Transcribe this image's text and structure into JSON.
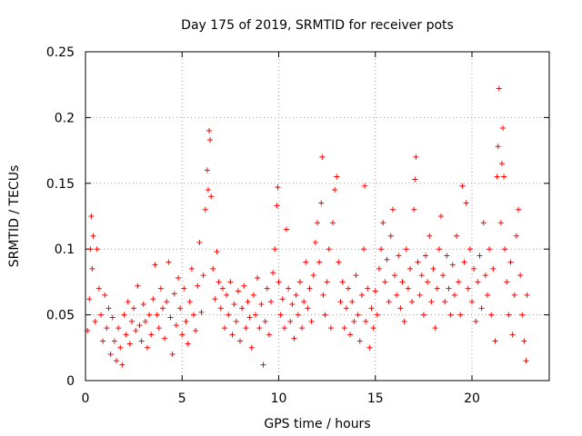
{
  "chart_data": {
    "type": "scatter",
    "title": "Day 175 of 2019, SRMTID for receiver pots",
    "xlabel": "GPS time / hours",
    "ylabel": "SRMTID / TECUs",
    "xlim": [
      0,
      24
    ],
    "ylim": [
      0,
      0.25
    ],
    "xticks": [
      0,
      5,
      10,
      15,
      20
    ],
    "xtick_labels": [
      "0",
      "5",
      "10",
      "15",
      "20"
    ],
    "yticks": [
      0,
      0.05,
      0.1,
      0.15,
      0.2,
      0.25
    ],
    "ytick_labels": [
      "0",
      "0.05",
      "0.1",
      "0.15",
      "0.2",
      "0.25"
    ],
    "grid": true,
    "marker": "plus",
    "color": "#ff0000",
    "series": [
      {
        "name": "SRMTID",
        "points": [
          [
            0.1,
            0.038
          ],
          [
            0.2,
            0.062
          ],
          [
            0.25,
            0.1
          ],
          [
            0.3,
            0.125
          ],
          [
            0.35,
            0.085
          ],
          [
            0.4,
            0.11
          ],
          [
            0.5,
            0.045
          ],
          [
            0.6,
            0.1
          ],
          [
            0.7,
            0.07
          ],
          [
            0.8,
            0.05
          ],
          [
            0.9,
            0.03
          ],
          [
            1.0,
            0.065
          ],
          [
            1.1,
            0.04
          ],
          [
            1.2,
            0.055
          ],
          [
            1.3,
            0.02
          ],
          [
            1.4,
            0.048
          ],
          [
            1.5,
            0.03
          ],
          [
            1.6,
            0.015
          ],
          [
            1.7,
            0.04
          ],
          [
            1.8,
            0.025
          ],
          [
            1.9,
            0.012
          ],
          [
            2.0,
            0.05
          ],
          [
            2.1,
            0.035
          ],
          [
            2.2,
            0.06
          ],
          [
            2.3,
            0.028
          ],
          [
            2.4,
            0.045
          ],
          [
            2.5,
            0.055
          ],
          [
            2.6,
            0.038
          ],
          [
            2.7,
            0.072
          ],
          [
            2.8,
            0.042
          ],
          [
            2.9,
            0.03
          ],
          [
            3.0,
            0.058
          ],
          [
            3.1,
            0.045
          ],
          [
            3.2,
            0.025
          ],
          [
            3.3,
            0.05
          ],
          [
            3.4,
            0.035
          ],
          [
            3.5,
            0.062
          ],
          [
            3.6,
            0.088
          ],
          [
            3.7,
            0.05
          ],
          [
            3.8,
            0.04
          ],
          [
            3.9,
            0.07
          ],
          [
            4.0,
            0.055
          ],
          [
            4.1,
            0.032
          ],
          [
            4.2,
            0.06
          ],
          [
            4.3,
            0.09
          ],
          [
            4.4,
            0.048
          ],
          [
            4.5,
            0.02
          ],
          [
            4.6,
            0.066
          ],
          [
            4.7,
            0.042
          ],
          [
            4.8,
            0.078
          ],
          [
            4.9,
            0.055
          ],
          [
            5.0,
            0.035
          ],
          [
            5.1,
            0.07
          ],
          [
            5.2,
            0.045
          ],
          [
            5.3,
            0.028
          ],
          [
            5.4,
            0.06
          ],
          [
            5.5,
            0.085
          ],
          [
            5.6,
            0.05
          ],
          [
            5.7,
            0.038
          ],
          [
            5.8,
            0.072
          ],
          [
            5.9,
            0.105
          ],
          [
            6.0,
            0.052
          ],
          [
            6.1,
            0.08
          ],
          [
            6.2,
            0.13
          ],
          [
            6.3,
            0.16
          ],
          [
            6.35,
            0.145
          ],
          [
            6.4,
            0.19
          ],
          [
            6.45,
            0.183
          ],
          [
            6.5,
            0.14
          ],
          [
            6.6,
            0.085
          ],
          [
            6.7,
            0.062
          ],
          [
            6.8,
            0.098
          ],
          [
            6.9,
            0.075
          ],
          [
            7.0,
            0.055
          ],
          [
            7.1,
            0.07
          ],
          [
            7.2,
            0.04
          ],
          [
            7.3,
            0.065
          ],
          [
            7.4,
            0.05
          ],
          [
            7.5,
            0.075
          ],
          [
            7.6,
            0.035
          ],
          [
            7.7,
            0.058
          ],
          [
            7.8,
            0.045
          ],
          [
            7.9,
            0.068
          ],
          [
            8.0,
            0.03
          ],
          [
            8.1,
            0.055
          ],
          [
            8.2,
            0.072
          ],
          [
            8.3,
            0.04
          ],
          [
            8.4,
            0.06
          ],
          [
            8.5,
            0.048
          ],
          [
            8.6,
            0.025
          ],
          [
            8.7,
            0.065
          ],
          [
            8.8,
            0.05
          ],
          [
            8.9,
            0.078
          ],
          [
            9.0,
            0.04
          ],
          [
            9.1,
            0.058
          ],
          [
            9.2,
            0.012
          ],
          [
            9.3,
            0.045
          ],
          [
            9.4,
            0.07
          ],
          [
            9.5,
            0.035
          ],
          [
            9.6,
            0.06
          ],
          [
            9.7,
            0.082
          ],
          [
            9.8,
            0.1
          ],
          [
            9.9,
            0.133
          ],
          [
            9.95,
            0.147
          ],
          [
            10.0,
            0.075
          ],
          [
            10.1,
            0.05
          ],
          [
            10.2,
            0.062
          ],
          [
            10.3,
            0.04
          ],
          [
            10.4,
            0.115
          ],
          [
            10.5,
            0.07
          ],
          [
            10.6,
            0.045
          ],
          [
            10.7,
            0.058
          ],
          [
            10.8,
            0.032
          ],
          [
            10.9,
            0.065
          ],
          [
            11.0,
            0.05
          ],
          [
            11.1,
            0.075
          ],
          [
            11.2,
            0.04
          ],
          [
            11.3,
            0.06
          ],
          [
            11.4,
            0.09
          ],
          [
            11.5,
            0.055
          ],
          [
            11.6,
            0.07
          ],
          [
            11.7,
            0.045
          ],
          [
            11.8,
            0.08
          ],
          [
            11.9,
            0.105
          ],
          [
            12.0,
            0.12
          ],
          [
            12.1,
            0.09
          ],
          [
            12.2,
            0.135
          ],
          [
            12.25,
            0.17
          ],
          [
            12.3,
            0.065
          ],
          [
            12.4,
            0.05
          ],
          [
            12.5,
            0.075
          ],
          [
            12.6,
            0.1
          ],
          [
            12.7,
            0.04
          ],
          [
            12.8,
            0.12
          ],
          [
            12.9,
            0.145
          ],
          [
            13.0,
            0.155
          ],
          [
            13.1,
            0.09
          ],
          [
            13.2,
            0.06
          ],
          [
            13.3,
            0.075
          ],
          [
            13.4,
            0.04
          ],
          [
            13.5,
            0.055
          ],
          [
            13.6,
            0.07
          ],
          [
            13.7,
            0.035
          ],
          [
            13.8,
            0.06
          ],
          [
            13.9,
            0.045
          ],
          [
            14.0,
            0.08
          ],
          [
            14.1,
            0.05
          ],
          [
            14.2,
            0.03
          ],
          [
            14.3,
            0.065
          ],
          [
            14.4,
            0.1
          ],
          [
            14.45,
            0.148
          ],
          [
            14.5,
            0.045
          ],
          [
            14.6,
            0.07
          ],
          [
            14.7,
            0.025
          ],
          [
            14.8,
            0.055
          ],
          [
            14.9,
            0.04
          ],
          [
            15.0,
            0.068
          ],
          [
            15.1,
            0.05
          ],
          [
            15.2,
            0.085
          ],
          [
            15.3,
            0.1
          ],
          [
            15.4,
            0.12
          ],
          [
            15.5,
            0.075
          ],
          [
            15.6,
            0.092
          ],
          [
            15.7,
            0.06
          ],
          [
            15.8,
            0.11
          ],
          [
            15.9,
            0.13
          ],
          [
            16.0,
            0.08
          ],
          [
            16.1,
            0.065
          ],
          [
            16.2,
            0.095
          ],
          [
            16.3,
            0.055
          ],
          [
            16.4,
            0.075
          ],
          [
            16.5,
            0.045
          ],
          [
            16.6,
            0.1
          ],
          [
            16.7,
            0.07
          ],
          [
            16.8,
            0.085
          ],
          [
            16.9,
            0.06
          ],
          [
            17.0,
            0.13
          ],
          [
            17.05,
            0.153
          ],
          [
            17.1,
            0.17
          ],
          [
            17.2,
            0.09
          ],
          [
            17.3,
            0.065
          ],
          [
            17.4,
            0.08
          ],
          [
            17.5,
            0.05
          ],
          [
            17.6,
            0.095
          ],
          [
            17.7,
            0.075
          ],
          [
            17.8,
            0.11
          ],
          [
            17.9,
            0.06
          ],
          [
            18.0,
            0.085
          ],
          [
            18.1,
            0.04
          ],
          [
            18.2,
            0.07
          ],
          [
            18.3,
            0.1
          ],
          [
            18.4,
            0.125
          ],
          [
            18.5,
            0.08
          ],
          [
            18.6,
            0.06
          ],
          [
            18.7,
            0.095
          ],
          [
            18.8,
            0.07
          ],
          [
            18.9,
            0.05
          ],
          [
            19.0,
            0.088
          ],
          [
            19.1,
            0.065
          ],
          [
            19.2,
            0.11
          ],
          [
            19.3,
            0.075
          ],
          [
            19.4,
            0.05
          ],
          [
            19.5,
            0.148
          ],
          [
            19.6,
            0.09
          ],
          [
            19.7,
            0.135
          ],
          [
            19.8,
            0.07
          ],
          [
            19.9,
            0.1
          ],
          [
            20.0,
            0.06
          ],
          [
            20.1,
            0.085
          ],
          [
            20.2,
            0.045
          ],
          [
            20.3,
            0.075
          ],
          [
            20.4,
            0.095
          ],
          [
            20.5,
            0.055
          ],
          [
            20.6,
            0.12
          ],
          [
            20.7,
            0.08
          ],
          [
            20.8,
            0.065
          ],
          [
            20.9,
            0.1
          ],
          [
            21.0,
            0.05
          ],
          [
            21.1,
            0.085
          ],
          [
            21.2,
            0.03
          ],
          [
            21.3,
            0.155
          ],
          [
            21.35,
            0.178
          ],
          [
            21.4,
            0.222
          ],
          [
            21.5,
            0.12
          ],
          [
            21.55,
            0.165
          ],
          [
            21.6,
            0.192
          ],
          [
            21.65,
            0.155
          ],
          [
            21.7,
            0.1
          ],
          [
            21.8,
            0.075
          ],
          [
            21.9,
            0.05
          ],
          [
            22.0,
            0.09
          ],
          [
            22.1,
            0.035
          ],
          [
            22.2,
            0.065
          ],
          [
            22.3,
            0.11
          ],
          [
            22.4,
            0.13
          ],
          [
            22.5,
            0.08
          ],
          [
            22.6,
            0.05
          ],
          [
            22.7,
            0.03
          ],
          [
            22.8,
            0.015
          ],
          [
            22.85,
            0.065
          ]
        ]
      }
    ]
  }
}
